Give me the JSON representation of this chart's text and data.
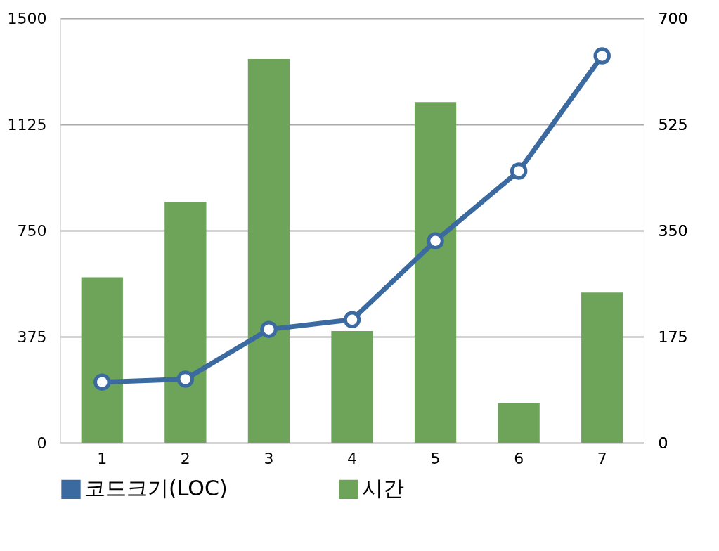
{
  "chart_data": {
    "type": "bar",
    "categories": [
      "1",
      "2",
      "3",
      "4",
      "5",
      "6",
      "7"
    ],
    "series": [
      {
        "name": "코드크기(LOC)",
        "type": "line",
        "axis": "y2",
        "color": "#3b6aa0",
        "marker": "circle",
        "values": [
          100,
          105,
          187,
          203,
          333,
          448,
          638
        ]
      },
      {
        "name": "시간",
        "color": "#6da45a",
        "values": [
          585,
          852,
          1356,
          395,
          1204,
          139,
          531
        ]
      }
    ],
    "ylim": [
      0,
      1500
    ],
    "yticks": [
      0,
      375,
      750,
      1125,
      1500
    ],
    "y2lim": [
      0,
      700
    ],
    "y2ticks": [
      0,
      175,
      350,
      525,
      700
    ],
    "grid": "y",
    "legend": "bottom"
  }
}
